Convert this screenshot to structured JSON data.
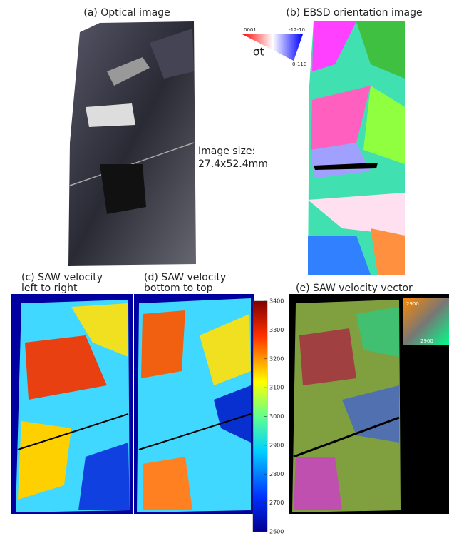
{
  "panels": {
    "a": {
      "title": "(a) Optical image"
    },
    "b": {
      "title": "(b) EBSD orientation image",
      "key": {
        "top_left": "0001",
        "top_right": "-12-10",
        "bottom": "0-110",
        "symbol": "σt"
      }
    },
    "c": {
      "title_line1": "(c) SAW velocity",
      "title_line2": "left to right"
    },
    "d": {
      "title_line1": "(d) SAW velocity",
      "title_line2": "bottom to top"
    },
    "e": {
      "title": "(e) SAW velocity vector",
      "key": {
        "top": "2900",
        "bottom": "2900"
      }
    }
  },
  "note": {
    "line1": "Image size:",
    "line2": "27.4x52.4mm"
  },
  "colorbar": {
    "range": [
      2600,
      3400
    ],
    "ticks": [
      2600,
      2700,
      2800,
      2900,
      3000,
      3100,
      3200,
      3300,
      3400
    ]
  }
}
